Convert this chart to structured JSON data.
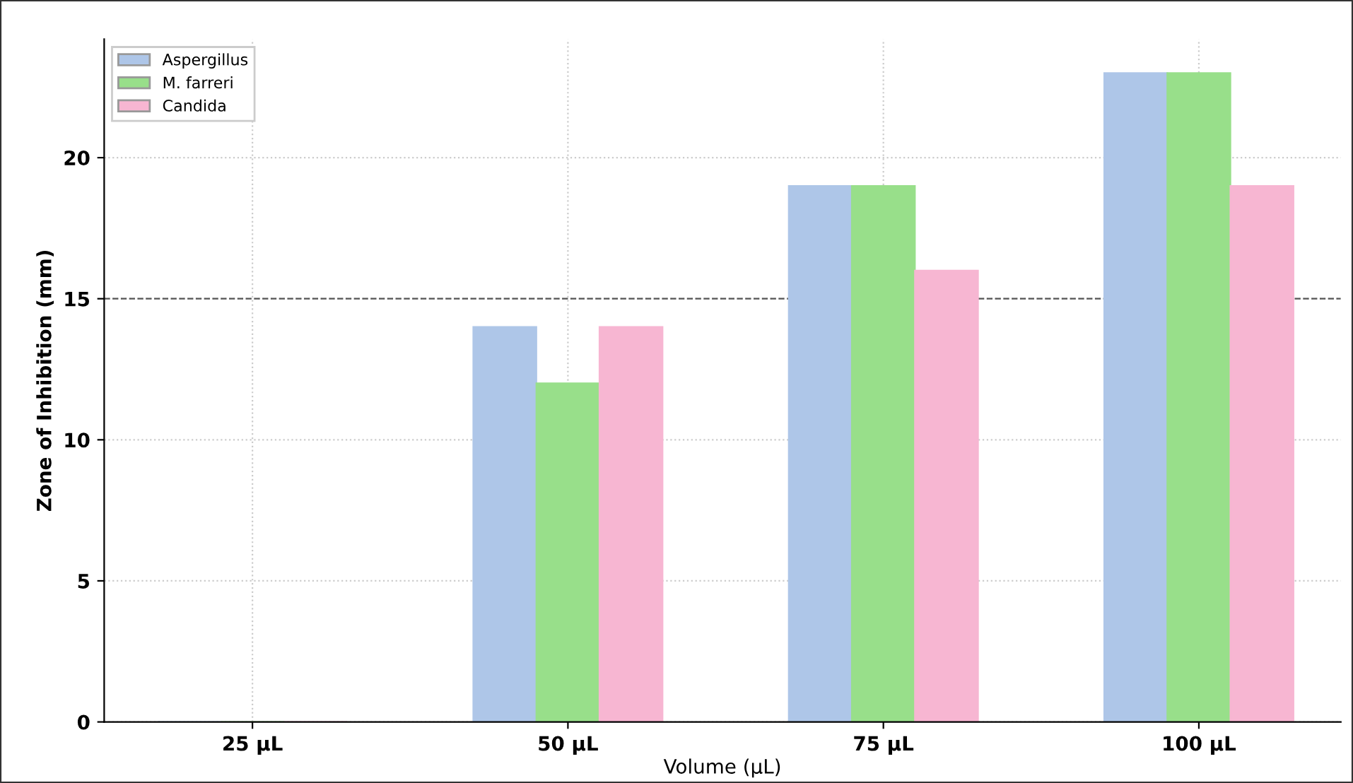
{
  "chart_data": {
    "type": "bar",
    "xlabel": "Volume (µL)",
    "ylabel": "Zone of Inhibition (mm)",
    "categories": [
      "25 µL",
      "50 µL",
      "75 µL",
      "100 µL"
    ],
    "series": [
      {
        "name": "Aspergillus",
        "color": "#aec6e8",
        "values": [
          0,
          14,
          19,
          23
        ]
      },
      {
        "name": "M. farreri",
        "color": "#98df8a",
        "values": [
          0,
          12,
          19,
          23
        ]
      },
      {
        "name": "Candida",
        "color": "#f7b6d2",
        "values": [
          0,
          14,
          16,
          19
        ]
      }
    ],
    "ylim": [
      0,
      24.2
    ],
    "yticks": [
      0,
      5,
      10,
      15,
      20
    ],
    "grid": true,
    "legend": "top left",
    "ref_lines": [
      {
        "axis": "y",
        "value": 15,
        "color": "#555555",
        "line_style": "dashed"
      }
    ]
  }
}
